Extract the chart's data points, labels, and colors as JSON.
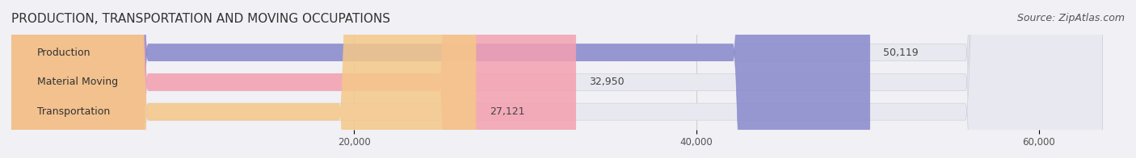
{
  "title": "PRODUCTION, TRANSPORTATION AND MOVING OCCUPATIONS",
  "source": "Source: ZipAtlas.com",
  "categories": [
    "Production",
    "Material Moving",
    "Transportation"
  ],
  "values": [
    50119,
    32950,
    27121
  ],
  "bar_colors": [
    "#8888cc",
    "#f4a0b0",
    "#f5c888"
  ],
  "bar_edge_colors": [
    "#aaaadd",
    "#f8b8c4",
    "#f8d8a0"
  ],
  "label_colors": [
    "#8888cc",
    "#f4a0b0",
    "#f5c888"
  ],
  "xlim": [
    0,
    65000
  ],
  "xticks": [
    20000,
    40000,
    60000
  ],
  "xtick_labels": [
    "20,000",
    "40,000",
    "60,000"
  ],
  "background_color": "#f0f0f5",
  "bar_bg_color": "#e8e8f0",
  "title_fontsize": 11,
  "source_fontsize": 9,
  "bar_label_fontsize": 9,
  "category_fontsize": 9,
  "tick_fontsize": 8.5
}
